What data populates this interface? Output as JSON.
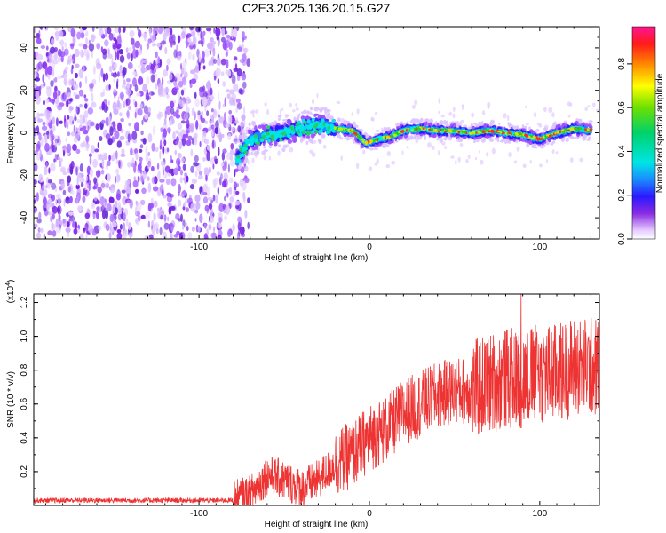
{
  "title": "C2E3.2025.136.20.15.G27",
  "chart_data": [
    {
      "type": "heatmap",
      "xlabel": "Height of straight line (km)",
      "ylabel": "Frequency (Hz)",
      "xlim": [
        -197,
        135
      ],
      "ylim": [
        -50,
        50
      ],
      "xticks": [
        -100,
        0,
        100
      ],
      "yticks": [
        -40,
        -20,
        0,
        20,
        40
      ],
      "colorbar": {
        "label": "Normalized spectral amplitude",
        "range": [
          0,
          0.97
        ],
        "ticks": [
          0.0,
          0.2,
          0.4,
          0.6,
          0.8
        ]
      },
      "noise_region_x": [
        -197,
        -73
      ],
      "signal_track": [
        {
          "x": -78,
          "y": -13
        },
        {
          "x": -70,
          "y": -3
        },
        {
          "x": -60,
          "y": -1
        },
        {
          "x": -50,
          "y": 0
        },
        {
          "x": -40,
          "y": 2
        },
        {
          "x": -30,
          "y": 4
        },
        {
          "x": -20,
          "y": 2
        },
        {
          "x": -10,
          "y": 1
        },
        {
          "x": -2,
          "y": -5
        },
        {
          "x": 5,
          "y": -3
        },
        {
          "x": 12,
          "y": -2
        },
        {
          "x": 20,
          "y": 1
        },
        {
          "x": 30,
          "y": 2
        },
        {
          "x": 40,
          "y": 1
        },
        {
          "x": 50,
          "y": 1
        },
        {
          "x": 60,
          "y": 0
        },
        {
          "x": 70,
          "y": 1
        },
        {
          "x": 80,
          "y": 0
        },
        {
          "x": 90,
          "y": -1
        },
        {
          "x": 100,
          "y": -3
        },
        {
          "x": 110,
          "y": 0
        },
        {
          "x": 120,
          "y": 2
        },
        {
          "x": 130,
          "y": 1
        }
      ]
    },
    {
      "type": "line",
      "xlabel": "Height of straight line (km)",
      "ylabel": "SNR (10 * v/v)",
      "scale_label": "(x10",
      "scale_exp": "4",
      "scale_close": ")",
      "xlim": [
        -197,
        135
      ],
      "ylim": [
        0,
        1.25
      ],
      "xticks": [
        -100,
        0,
        100
      ],
      "yticks": [
        0.2,
        0.4,
        0.6,
        0.8,
        1.0,
        1.2
      ],
      "color": "#ee3333",
      "envelope": [
        {
          "x": -197,
          "y": 0.03
        },
        {
          "x": -80,
          "y": 0.03
        },
        {
          "x": -70,
          "y": 0.06
        },
        {
          "x": -60,
          "y": 0.18
        },
        {
          "x": -50,
          "y": 0.15
        },
        {
          "x": -40,
          "y": 0.1
        },
        {
          "x": -30,
          "y": 0.15
        },
        {
          "x": -20,
          "y": 0.25
        },
        {
          "x": -10,
          "y": 0.3
        },
        {
          "x": 0,
          "y": 0.4
        },
        {
          "x": 10,
          "y": 0.45
        },
        {
          "x": 20,
          "y": 0.55
        },
        {
          "x": 30,
          "y": 0.6
        },
        {
          "x": 40,
          "y": 0.65
        },
        {
          "x": 50,
          "y": 0.68
        },
        {
          "x": 60,
          "y": 0.68
        },
        {
          "x": 70,
          "y": 0.72
        },
        {
          "x": 80,
          "y": 0.75
        },
        {
          "x": 90,
          "y": 0.75
        },
        {
          "x": 100,
          "y": 0.78
        },
        {
          "x": 110,
          "y": 0.78
        },
        {
          "x": 120,
          "y": 0.82
        },
        {
          "x": 135,
          "y": 0.82
        }
      ],
      "peak_value": 1.25
    }
  ]
}
